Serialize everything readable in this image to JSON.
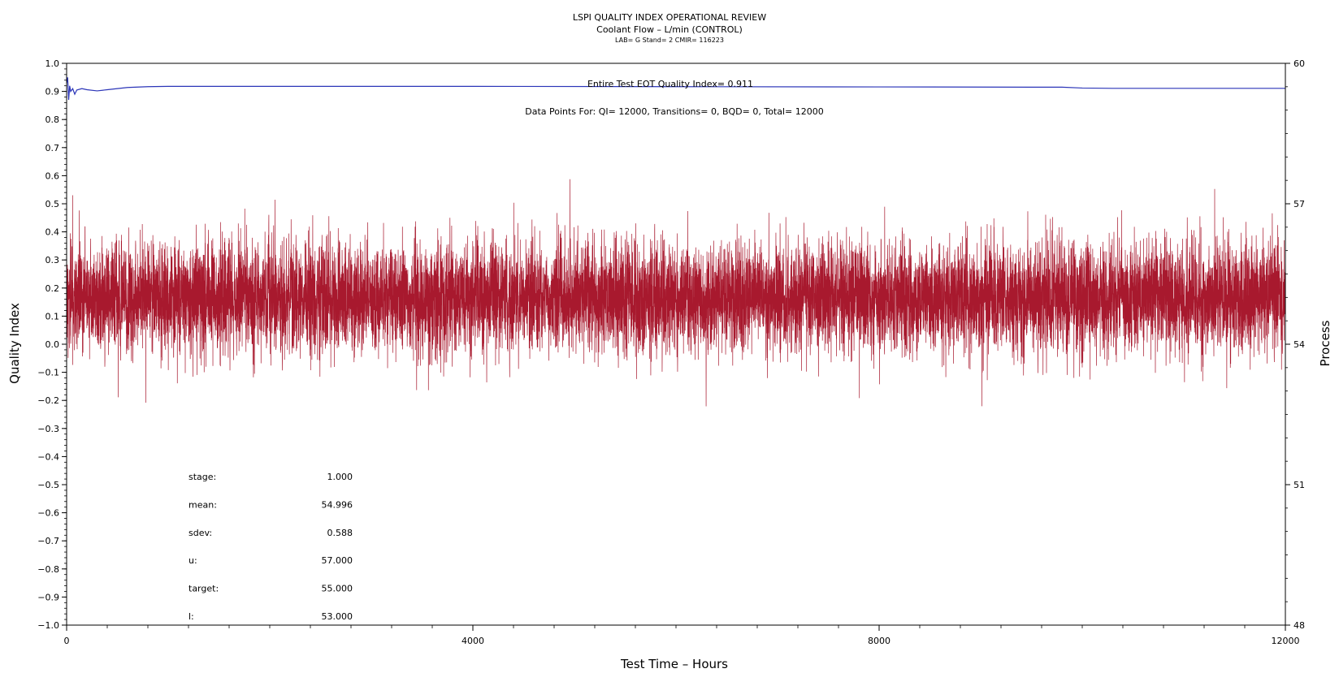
{
  "chart_data": {
    "type": "line",
    "title": "LSPI QUALITY INDEX OPERATIONAL REVIEW",
    "subtitle": "Coolant Flow – L/min (CONTROL)",
    "meta_line": "LAB= G Stand= 2 CMIR= 116223",
    "xlabel": "Test Time – Hours",
    "ylabel": "Quality Index",
    "y2label": "Process",
    "xlim": [
      0,
      12000
    ],
    "ylim": [
      -1.0,
      1.0
    ],
    "y2lim": [
      48,
      60
    ],
    "x_ticks": [
      0,
      4000,
      8000,
      12000
    ],
    "x_minor_step": 400,
    "y_ticks": [
      1.0,
      0.9,
      0.8,
      0.7,
      0.6,
      0.5,
      0.4,
      0.3,
      0.2,
      0.1,
      0.0,
      -0.1,
      -0.2,
      -0.3,
      -0.4,
      -0.5,
      -0.6,
      -0.7,
      -0.8,
      -0.9,
      -1.0
    ],
    "y_tick_labels": [
      "1.0",
      "0.9",
      "0.8",
      "0.7",
      "0.6",
      "0.5",
      "0.4",
      "0.3",
      "0.2",
      "0.1",
      "0.0",
      "−0.1",
      "−0.2",
      "−0.3",
      "−0.4",
      "−0.5",
      "−0.6",
      "−0.7",
      "−0.8",
      "−0.9",
      "−1.0"
    ],
    "y2_ticks": [
      60,
      57,
      54,
      51,
      48
    ],
    "y2_tick_labels": [
      "60",
      "57",
      "54",
      "51",
      "48"
    ],
    "annotation_qi": "Entire Test EOT Quality Index=   0.911",
    "annotation_points": "Data Points For: QI= 12000, Transitions=     0, BQD=     0, Total= 12000",
    "series": [
      {
        "axis": "left",
        "color": "#2b35b8",
        "x": [
          0,
          10,
          20,
          30,
          40,
          60,
          80,
          100,
          150,
          200,
          300,
          400,
          500,
          600,
          800,
          1000,
          1500,
          2000,
          4000,
          6000,
          8000,
          9800,
          10000,
          10300,
          12000
        ],
        "values": [
          0.93,
          0.95,
          0.87,
          0.92,
          0.9,
          0.91,
          0.89,
          0.905,
          0.91,
          0.906,
          0.902,
          0.906,
          0.91,
          0.914,
          0.917,
          0.918,
          0.918,
          0.918,
          0.918,
          0.917,
          0.916,
          0.915,
          0.912,
          0.911,
          0.911
        ]
      },
      {
        "axis": "right",
        "color": "#a8192e",
        "points": 12000,
        "mean": 54.996,
        "sdev": 0.588
      }
    ],
    "stats": [
      {
        "label": "stage:",
        "value": "1.000"
      },
      {
        "label": "mean:",
        "value": "54.996"
      },
      {
        "label": "sdev:",
        "value": "0.588"
      },
      {
        "label": "u:",
        "value": "57.000"
      },
      {
        "label": "target:",
        "value": "55.000"
      },
      {
        "label": "l:",
        "value": "53.000"
      }
    ]
  }
}
